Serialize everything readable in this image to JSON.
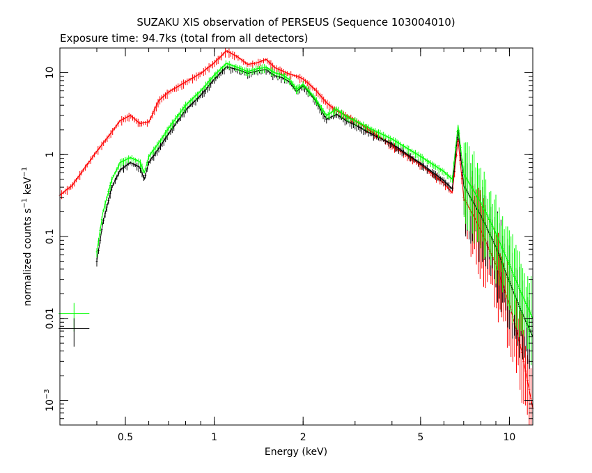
{
  "chart_data": {
    "type": "line",
    "title": "SUZAKU XIS observation of PERSEUS (Sequence 103004010)",
    "subtitle": "Exposure time: 94.7ks (total from all detectors)",
    "xlabel": "Energy (keV)",
    "ylabel_main": "normalized counts s",
    "ylabel_mid": " keV",
    "ylabel_sup": "−1",
    "x_scale": "log",
    "y_scale": "log",
    "xlim": [
      0.3,
      12
    ],
    "ylim": [
      0.0005,
      20
    ],
    "x_ticks": [
      {
        "value": 0.5,
        "label": "0.5"
      },
      {
        "value": 1,
        "label": "1"
      },
      {
        "value": 2,
        "label": "2"
      },
      {
        "value": 5,
        "label": "5"
      },
      {
        "value": 10,
        "label": "10"
      }
    ],
    "y_ticks": [
      {
        "value": 10,
        "label": "10"
      },
      {
        "value": 1,
        "label": "1"
      },
      {
        "value": 0.1,
        "label": "0.1"
      },
      {
        "value": 0.01,
        "label": "0.01"
      },
      {
        "value": 0.001,
        "base": "10",
        "exp": "−3"
      }
    ],
    "legend": "none",
    "series": [
      {
        "color": "#ff0000",
        "x": [
          0.3,
          0.33,
          0.36,
          0.4,
          0.44,
          0.48,
          0.52,
          0.56,
          0.6,
          0.65,
          0.7,
          0.8,
          0.9,
          1.0,
          1.1,
          1.2,
          1.3,
          1.4,
          1.5,
          1.6,
          1.7,
          1.8,
          1.9,
          2.0,
          2.1,
          2.2,
          2.4,
          2.6,
          2.8,
          3.0,
          3.5,
          4.0,
          5.0,
          6.0,
          6.4,
          6.7,
          7.0,
          8.0,
          9.0,
          10.0,
          11.0,
          12.0
        ],
        "y": [
          0.32,
          0.42,
          0.65,
          1.1,
          1.7,
          2.6,
          3.0,
          2.4,
          2.5,
          4.6,
          5.8,
          7.7,
          9.8,
          13.2,
          18.5,
          15.6,
          12.6,
          13.2,
          14.6,
          11.6,
          10.5,
          9.6,
          9.1,
          8.4,
          7.2,
          6.2,
          4.3,
          3.4,
          3.0,
          2.6,
          1.8,
          1.3,
          0.75,
          0.45,
          0.34,
          1.5,
          0.3,
          0.12,
          0.045,
          0.015,
          0.004,
          0.0008
        ]
      },
      {
        "color": "#000000",
        "x": [
          0.4,
          0.42,
          0.45,
          0.48,
          0.52,
          0.56,
          0.58,
          0.6,
          0.65,
          0.7,
          0.8,
          0.9,
          1.0,
          1.1,
          1.2,
          1.3,
          1.4,
          1.5,
          1.6,
          1.7,
          1.8,
          1.9,
          2.0,
          2.1,
          2.2,
          2.4,
          2.6,
          2.8,
          3.0,
          3.5,
          4.0,
          5.0,
          6.0,
          6.4,
          6.7,
          7.0,
          8.0,
          9.0,
          10.0,
          11.0,
          12.0
        ],
        "y": [
          0.05,
          0.15,
          0.4,
          0.65,
          0.8,
          0.7,
          0.5,
          0.8,
          1.2,
          1.8,
          3.5,
          5.3,
          8.3,
          11.8,
          10.9,
          9.8,
          10.5,
          10.9,
          9.2,
          8.7,
          7.7,
          5.9,
          6.9,
          5.7,
          4.6,
          2.7,
          3.1,
          2.6,
          2.3,
          1.7,
          1.35,
          0.78,
          0.48,
          0.38,
          2.0,
          0.42,
          0.18,
          0.075,
          0.028,
          0.012,
          0.006
        ]
      },
      {
        "color": "#00ff00",
        "x": [
          0.4,
          0.42,
          0.45,
          0.48,
          0.52,
          0.56,
          0.58,
          0.6,
          0.65,
          0.7,
          0.8,
          0.9,
          1.0,
          1.1,
          1.2,
          1.3,
          1.4,
          1.5,
          1.6,
          1.7,
          1.8,
          1.9,
          2.0,
          2.1,
          2.2,
          2.4,
          2.6,
          2.8,
          3.0,
          3.5,
          4.0,
          5.0,
          6.0,
          6.4,
          6.7,
          7.0,
          8.0,
          9.0,
          10.0,
          11.0,
          12.0
        ],
        "y": [
          0.065,
          0.2,
          0.5,
          0.8,
          0.92,
          0.82,
          0.6,
          0.95,
          1.4,
          2.1,
          4.0,
          6.0,
          9.3,
          13.0,
          11.6,
          10.3,
          11.2,
          11.6,
          10.0,
          9.4,
          8.2,
          6.3,
          7.2,
          5.9,
          4.8,
          3.0,
          3.6,
          2.9,
          2.6,
          1.95,
          1.55,
          0.95,
          0.62,
          0.5,
          2.3,
          0.58,
          0.26,
          0.11,
          0.045,
          0.02,
          0.01
        ]
      }
    ],
    "annotations": [
      {
        "color": "#00ff00",
        "x": 0.335,
        "y": 0.0115
      },
      {
        "color": "#000000",
        "x": 0.335,
        "y": 0.0075
      }
    ]
  }
}
